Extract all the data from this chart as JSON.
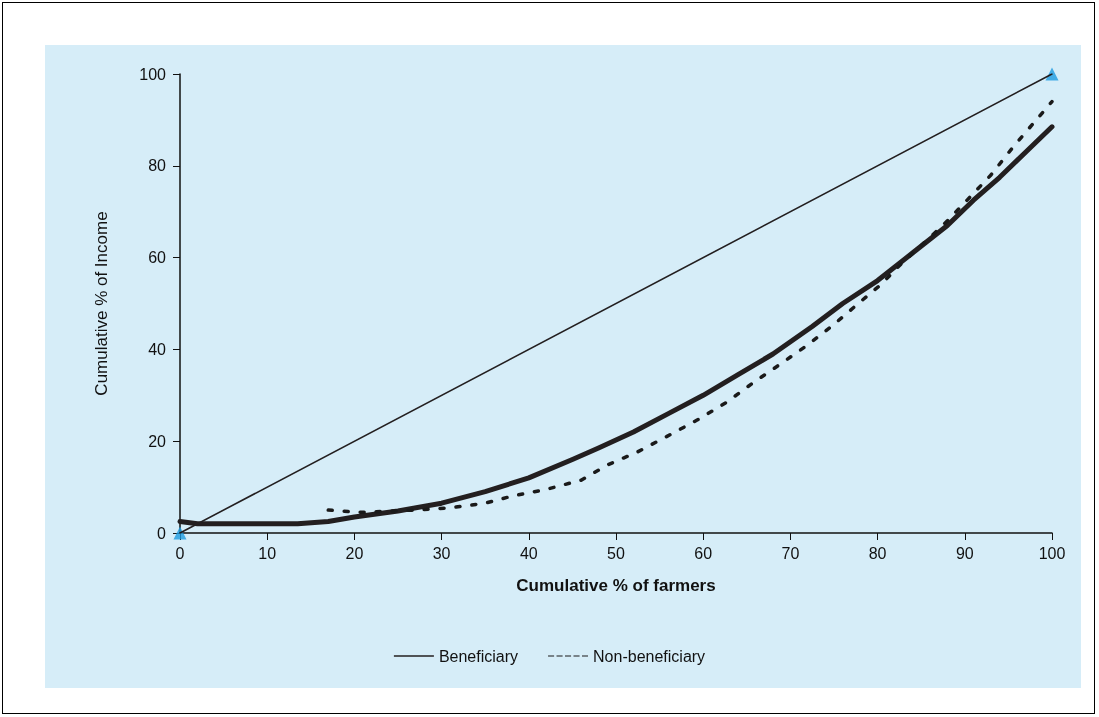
{
  "chart_data": {
    "type": "line",
    "xlabel": "Cumulative % of farmers",
    "ylabel": "Cumulative % of Income",
    "xlim": [
      0,
      100
    ],
    "xticks": [
      0,
      10,
      20,
      30,
      40,
      50,
      60,
      70,
      80,
      90,
      100
    ],
    "ylim": [
      0,
      100
    ],
    "yticks": [
      0,
      20,
      40,
      60,
      80,
      100
    ],
    "grid": false,
    "legend": "bottom",
    "marker": "none",
    "series": [
      {
        "name": "Beneficiary",
        "color": "#231f20",
        "line_style": "solid",
        "x": [
          0,
          2,
          4,
          8,
          13.5,
          17,
          20,
          25,
          30,
          35,
          40,
          45,
          48,
          52,
          56,
          60,
          64,
          68,
          72.5,
          76,
          80,
          84,
          88,
          91,
          94,
          97,
          100
        ],
        "values": [
          2.5,
          2,
          2,
          2,
          2,
          2.5,
          3.5,
          4.8,
          6.5,
          9,
          12,
          16,
          18.5,
          22,
          26,
          30,
          34.5,
          39,
          45,
          50,
          55,
          61,
          67,
          72.5,
          77.5,
          83,
          88.5
        ]
      },
      {
        "name": "Non-beneficiary",
        "color": "#1a1a1a",
        "line_style": "dashed",
        "x": [
          17,
          20.5,
          27,
          31,
          35,
          38,
          42,
          46,
          49,
          52.4,
          55.8,
          59.3,
          62.7,
          65.7,
          69,
          72,
          74.9,
          77.6,
          80.3,
          82.9,
          85.5,
          88,
          90.5,
          93,
          95.5,
          100
        ],
        "values": [
          5,
          4.5,
          5,
          5.5,
          6.5,
          8,
          9.5,
          11.5,
          14.8,
          17.6,
          21,
          24.6,
          28.5,
          32.7,
          37,
          41,
          45.3,
          49.7,
          54,
          59,
          63.5,
          68,
          73,
          78,
          84,
          94
        ]
      },
      {
        "color": "#231f20",
        "line_style": "solid",
        "x": [
          0,
          100
        ],
        "values": [
          0,
          100
        ]
      },
      {
        "type": "scatter",
        "color": "#1e9be0",
        "marker": "triangle",
        "x": [
          0,
          100
        ],
        "values": [
          0,
          100
        ]
      }
    ]
  }
}
